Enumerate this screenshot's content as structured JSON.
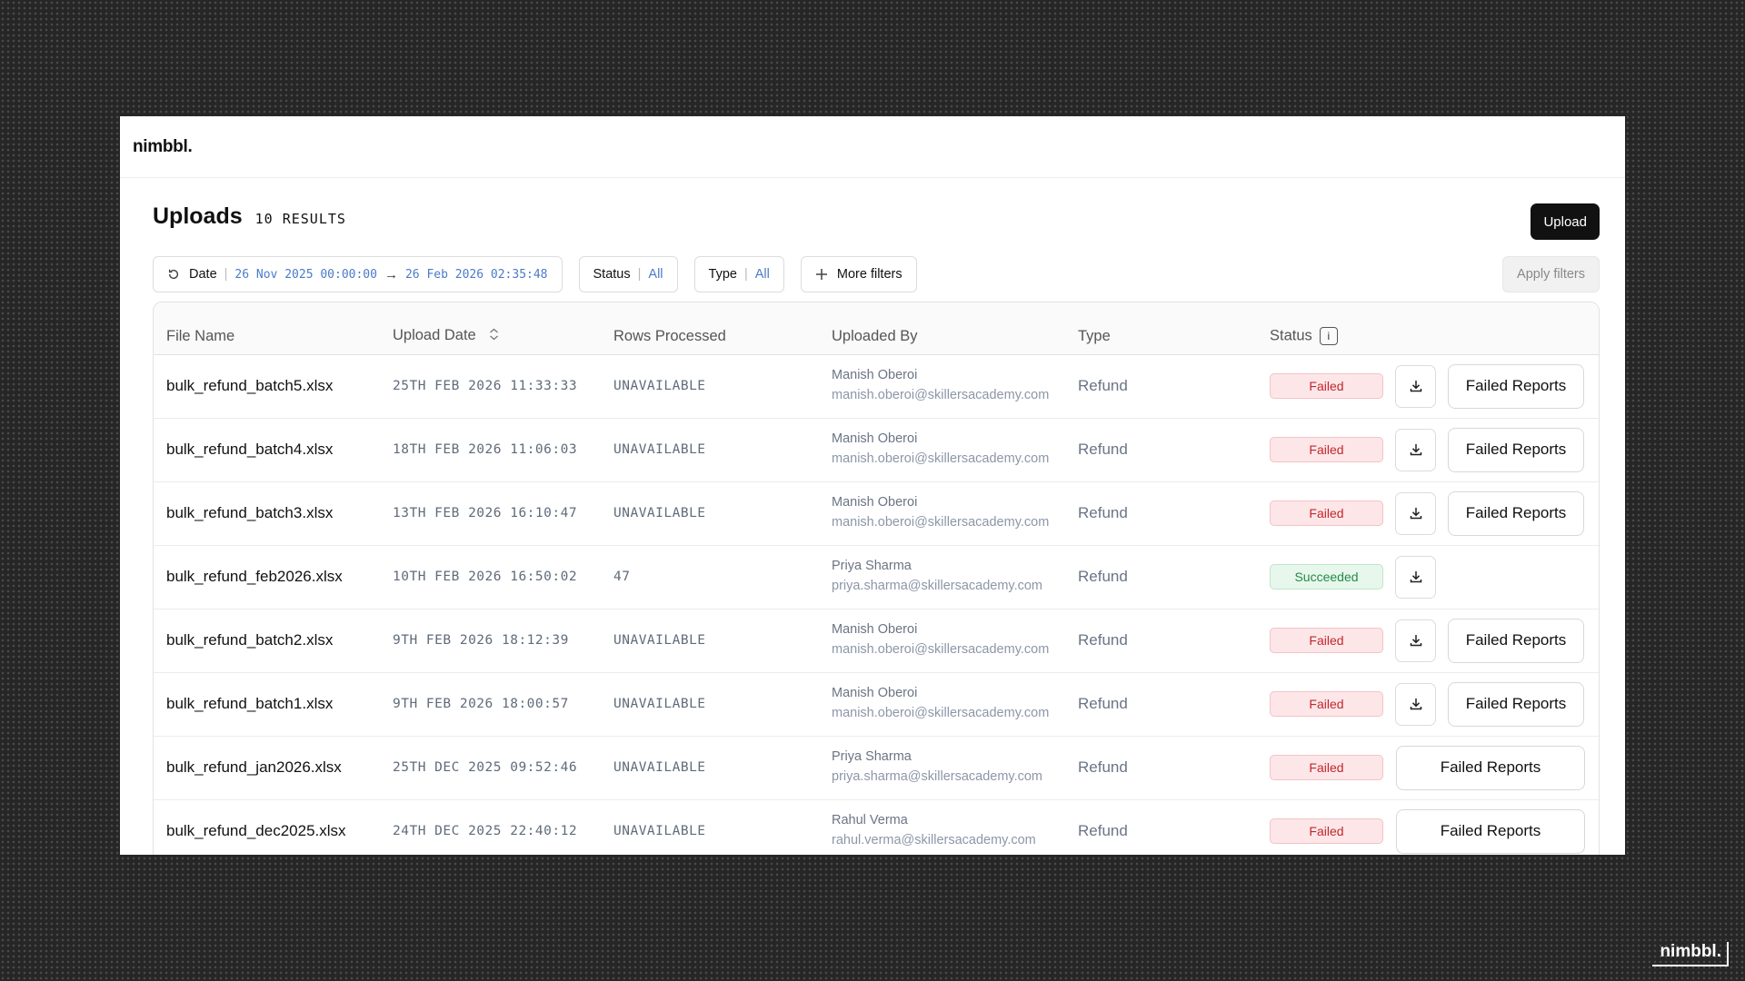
{
  "app": {
    "logo": "nimbbl.",
    "brand_mark": "nimbbl."
  },
  "header": {
    "title": "Uploads",
    "results": "10 RESULTS",
    "upload_label": "Upload"
  },
  "filters": {
    "date_label": "Date",
    "date_from": "26 Nov 2025 00:00:00",
    "date_to": "26 Feb 2026 02:35:48",
    "status_label": "Status",
    "status_value": "All",
    "type_label": "Type",
    "type_value": "All",
    "more_label": "More filters",
    "apply_label": "Apply filters"
  },
  "table": {
    "columns": [
      "File Name",
      "Upload Date",
      "Rows Processed",
      "Uploaded By",
      "Type",
      "Status"
    ],
    "failed_reports_label": "Failed Reports",
    "rows": [
      {
        "file": "bulk_refund_batch5.xlsx",
        "date": "25TH FEB 2026 11:33:33",
        "rows": "UNAVAILABLE",
        "user": "Manish Oberoi",
        "email": "manish.oberoi@skillersacademy.com",
        "type": "Refund",
        "status": "Failed"
      },
      {
        "file": "bulk_refund_batch4.xlsx",
        "date": "18TH FEB 2026 11:06:03",
        "rows": "UNAVAILABLE",
        "user": "Manish Oberoi",
        "email": "manish.oberoi@skillersacademy.com",
        "type": "Refund",
        "status": "Failed"
      },
      {
        "file": "bulk_refund_batch3.xlsx",
        "date": "13TH FEB 2026 16:10:47",
        "rows": "UNAVAILABLE",
        "user": "Manish Oberoi",
        "email": "manish.oberoi@skillersacademy.com",
        "type": "Refund",
        "status": "Failed"
      },
      {
        "file": "bulk_refund_feb2026.xlsx",
        "date": "10TH FEB 2026 16:50:02",
        "rows": "47",
        "user": "Priya Sharma",
        "email": "priya.sharma@skillersacademy.com",
        "type": "Refund",
        "status": "Succeeded"
      },
      {
        "file": "bulk_refund_batch2.xlsx",
        "date": "9TH FEB 2026 18:12:39",
        "rows": "UNAVAILABLE",
        "user": "Manish Oberoi",
        "email": "manish.oberoi@skillersacademy.com",
        "type": "Refund",
        "status": "Failed"
      },
      {
        "file": "bulk_refund_batch1.xlsx",
        "date": "9TH FEB 2026 18:00:57",
        "rows": "UNAVAILABLE",
        "user": "Manish Oberoi",
        "email": "manish.oberoi@skillersacademy.com",
        "type": "Refund",
        "status": "Failed"
      },
      {
        "file": "bulk_refund_jan2026.xlsx",
        "date": "25TH DEC 2025 09:52:46",
        "rows": "UNAVAILABLE",
        "user": "Priya Sharma",
        "email": "priya.sharma@skillersacademy.com",
        "type": "Refund",
        "status": "Failed"
      },
      {
        "file": "bulk_refund_dec2025.xlsx",
        "date": "24TH DEC 2025 22:40:12",
        "rows": "UNAVAILABLE",
        "user": "Rahul Verma",
        "email": "rahul.verma@skillersacademy.com",
        "type": "Refund",
        "status": "Failed"
      }
    ]
  },
  "colors": {
    "failed": "#c0282e",
    "succeeded": "#24894a",
    "link": "#4a7bc8"
  }
}
